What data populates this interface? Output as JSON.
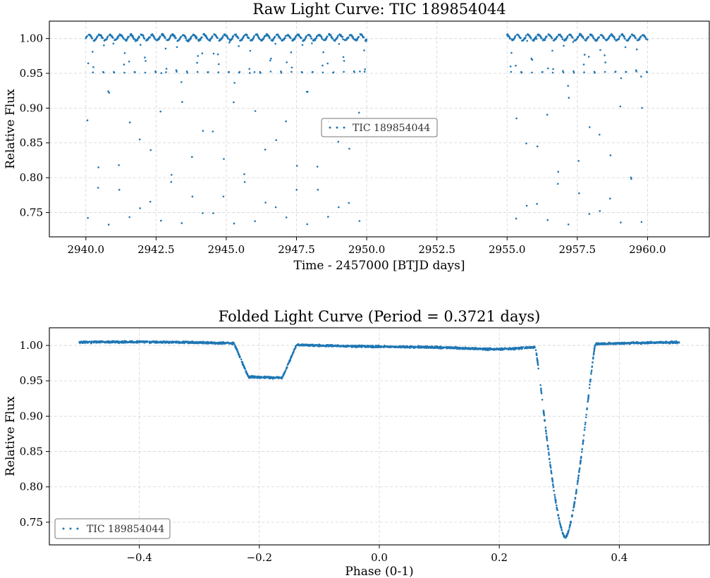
{
  "chart_data": [
    {
      "type": "scatter",
      "title": "Raw Light Curve: TIC 189854044",
      "xlabel": "Time - 2457000 [BTJD days]",
      "ylabel": "Relative Flux",
      "xlim": [
        2938.7,
        2962.2
      ],
      "ylim": [
        0.715,
        1.025
      ],
      "xticks": [
        2940.0,
        2942.5,
        2945.0,
        2947.5,
        2950.0,
        2952.5,
        2955.0,
        2957.5,
        2960.0
      ],
      "xtick_labels": [
        "2940.0",
        "2942.5",
        "2945.0",
        "2947.5",
        "2950.0",
        "2952.5",
        "2955.0",
        "2957.5",
        "2960.0"
      ],
      "yticks": [
        0.75,
        0.8,
        0.85,
        0.9,
        0.95,
        1.0
      ],
      "ytick_labels": [
        "0.75",
        "0.80",
        "0.85",
        "0.90",
        "0.95",
        "1.00"
      ],
      "grid": true,
      "legend_position": "center",
      "series": [
        {
          "name": "TIC 189854044",
          "color": "#1f77b4",
          "period": 0.3721,
          "primary_epoch": 2940.44,
          "primary_depth_min": 0.728,
          "secondary_depth_min": 0.953,
          "segments": [
            [
              2940.0,
              2950.0
            ],
            [
              2955.0,
              2960.0
            ]
          ]
        }
      ]
    },
    {
      "type": "scatter",
      "title": "Folded Light Curve (Period = 0.3721 days)",
      "xlabel": "Phase (0-1)",
      "ylabel": "Relative Flux",
      "xlim": [
        -0.55,
        0.55
      ],
      "ylim": [
        0.718,
        1.025
      ],
      "xticks": [
        -0.4,
        -0.2,
        0.0,
        0.2,
        0.4
      ],
      "xtick_labels": [
        "−0.4",
        "−0.2",
        "0.0",
        "0.2",
        "0.4"
      ],
      "yticks": [
        0.75,
        0.8,
        0.85,
        0.9,
        0.95,
        1.0
      ],
      "ytick_labels": [
        "0.75",
        "0.80",
        "0.85",
        "0.90",
        "0.95",
        "1.00"
      ],
      "grid": true,
      "legend_position": "lower-left",
      "series": [
        {
          "name": "TIC 189854044",
          "color": "#1f77b4",
          "phase_range": [
            -0.5,
            0.5
          ],
          "primary_center": 0.31,
          "primary_min": 0.728,
          "secondary_center": -0.19,
          "secondary_min": 0.953
        }
      ]
    }
  ]
}
